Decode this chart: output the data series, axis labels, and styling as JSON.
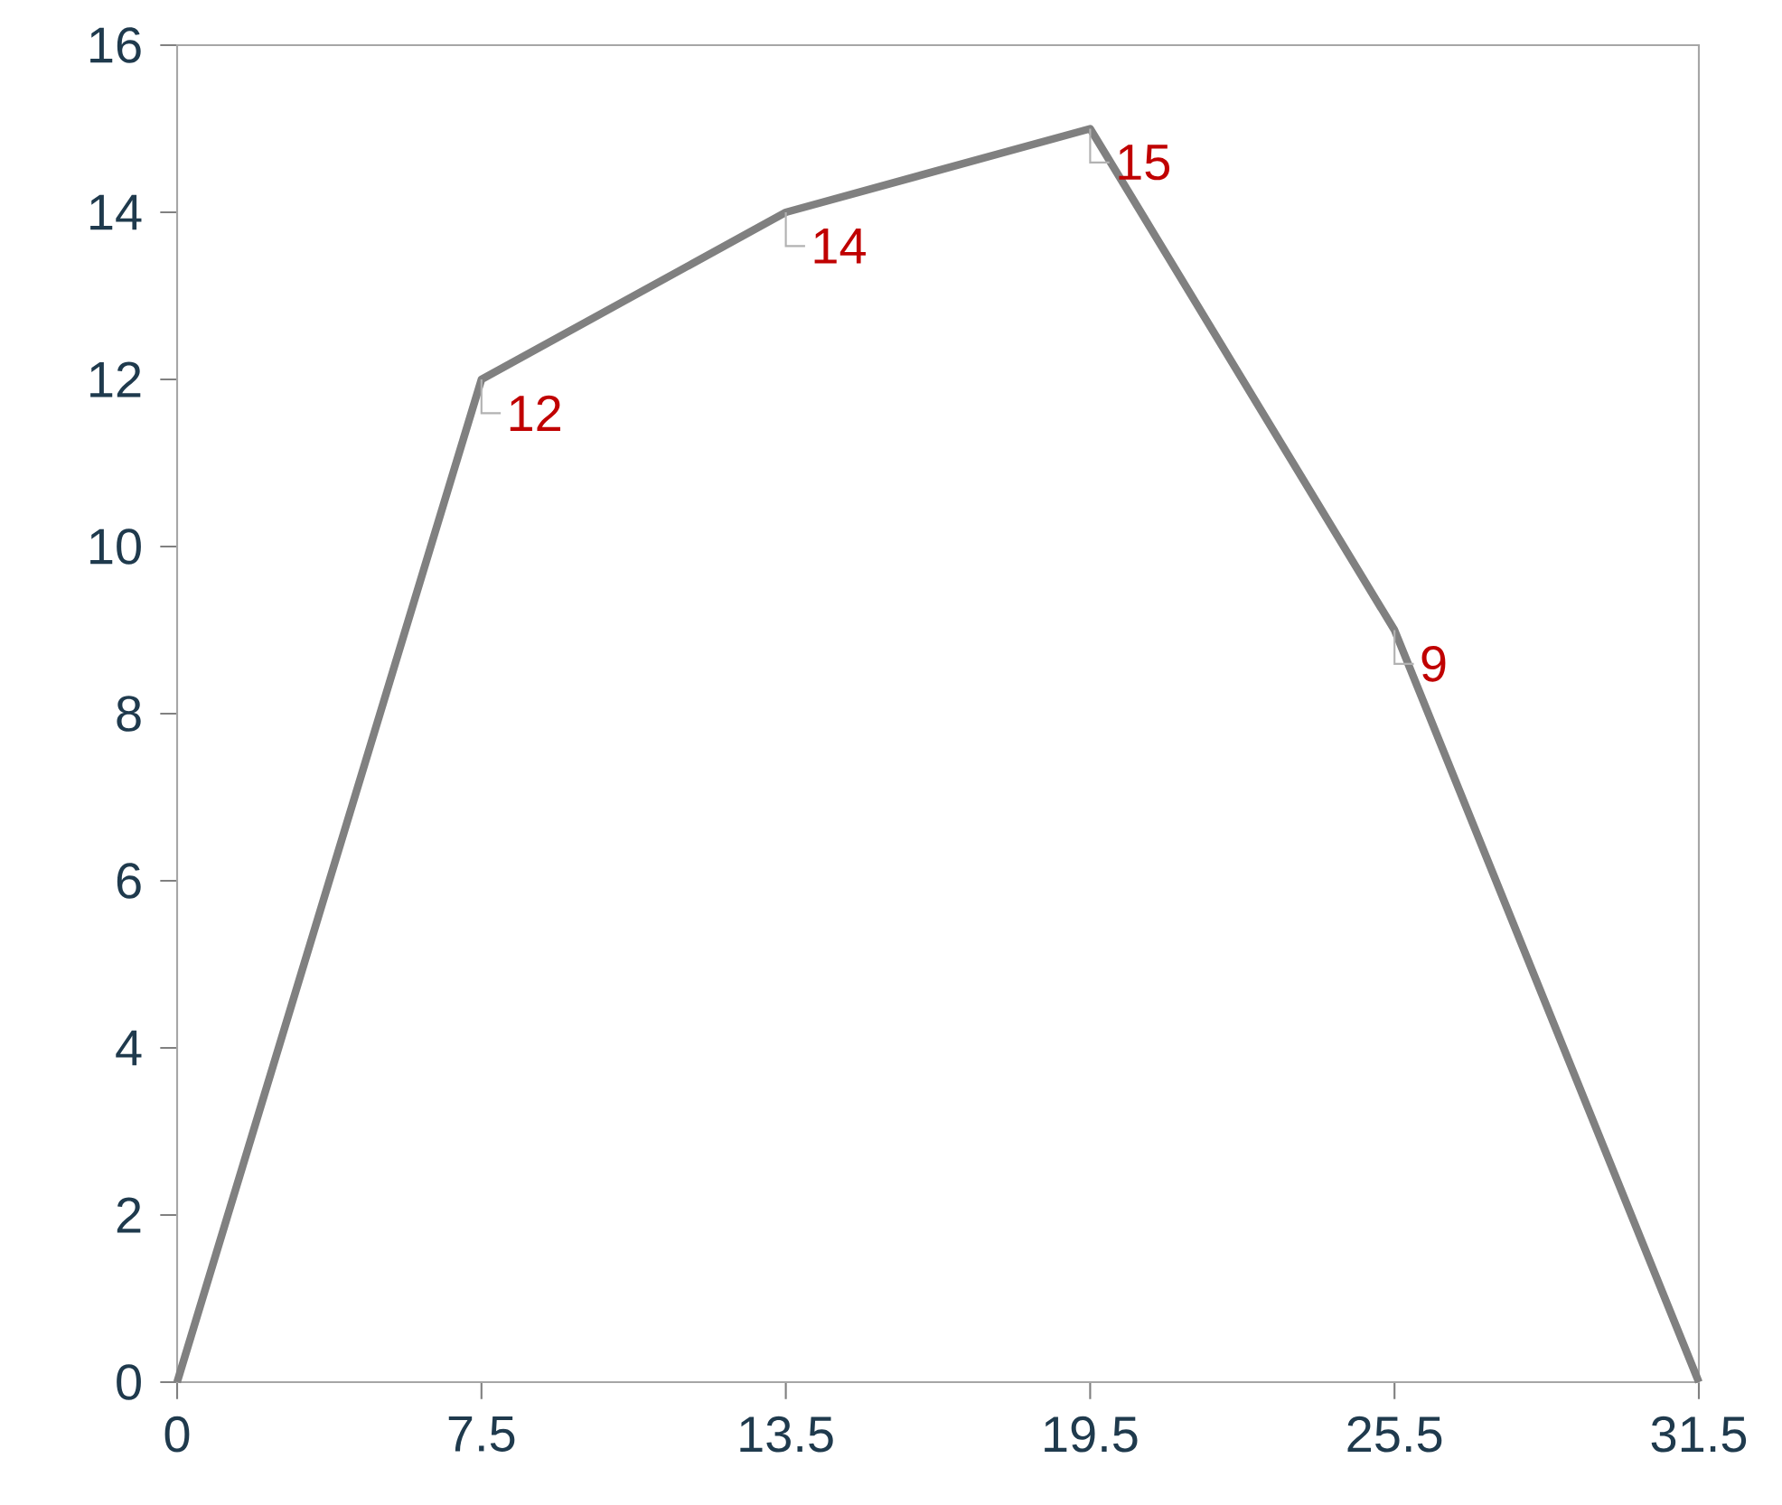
{
  "chart_data": {
    "type": "line",
    "categories": [
      "0",
      "7.5",
      "13.5",
      "19.5",
      "25.5",
      "31.5"
    ],
    "values": [
      0,
      12,
      14,
      15,
      9,
      0
    ],
    "value_labels": [
      null,
      "12",
      "14",
      "15",
      "9",
      null
    ],
    "color": "#808080",
    "ylim": [
      0,
      16
    ],
    "yticks": [
      0,
      2,
      4,
      6,
      8,
      10,
      12,
      14,
      16
    ]
  }
}
